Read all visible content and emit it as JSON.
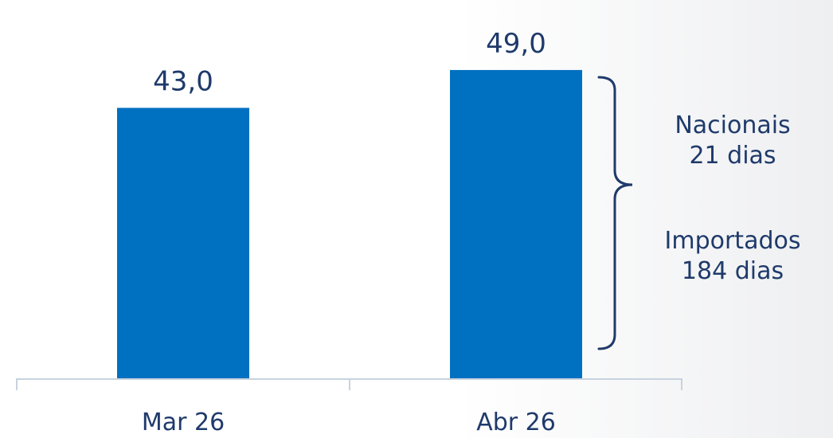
{
  "chart_data": {
    "type": "bar",
    "categories": [
      "Mar 26",
      "Abr 26"
    ],
    "values": [
      43.0,
      49.0
    ],
    "value_labels": [
      "43,0",
      "49,0"
    ],
    "ylim": [
      0,
      50
    ],
    "grid": false,
    "title": "",
    "xlabel": "",
    "ylabel": "",
    "annotations": {
      "nacionais": {
        "line1": "Nacionais",
        "line2": "21 dias"
      },
      "importados": {
        "line1": "Importados",
        "line2": "184 dias"
      }
    }
  },
  "colors": {
    "bar": "#0070c0",
    "text": "#1f3a6b",
    "axis": "#c8d3de",
    "bracket": "#1f3a6b"
  }
}
